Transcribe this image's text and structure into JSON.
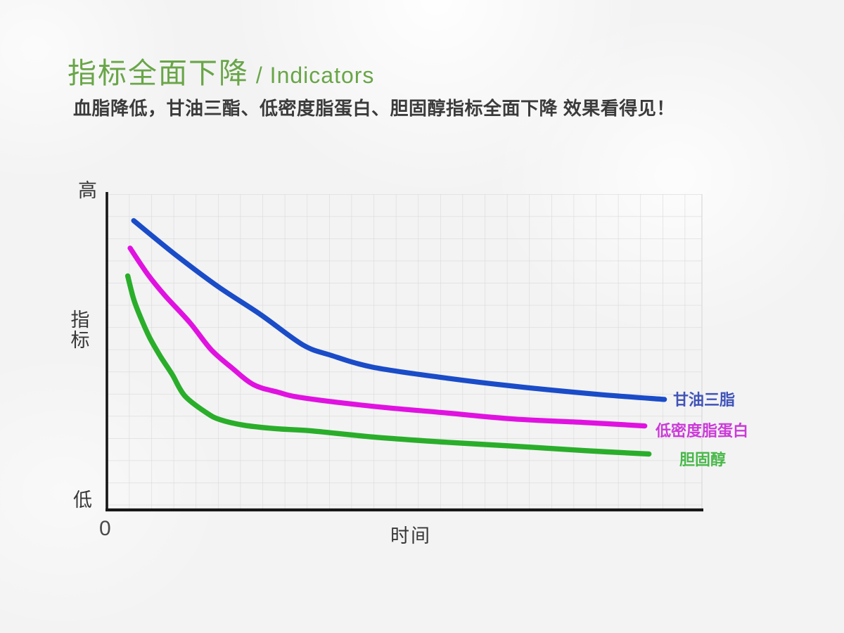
{
  "header": {
    "title_cn": "指标全面下降",
    "title_en": " / Indicators",
    "subtitle": "血脂降低，甘油三酯、低密度脂蛋白、胆固醇指标全面下降 效果看得见！"
  },
  "colors": {
    "title_green": "#69a647",
    "subtitle_text": "#3b3b3b",
    "axis": "#161616",
    "grid_line": "#d9d9d9",
    "background": "#f3f3f4"
  },
  "chart_data": {
    "type": "line",
    "title": "",
    "xlabel": "时间",
    "ylabel": "指标",
    "y_top_label": "高",
    "y_bottom_label": "低",
    "origin_label": "0",
    "grid": true,
    "legend_position": "right of each line end",
    "axes_note": "Qualitative axes: y runs from 低 (0) at bottom to 高 (1) at top; x is 时间 (time) starting at 0. Point coords are [time-fraction 0-1, indicator-level 0-1].",
    "series": [
      {
        "name": "甘油三脂",
        "color": "#1a4cc8",
        "label_color": "#4053b8",
        "points": [
          [
            0.045,
            0.916
          ],
          [
            0.116,
            0.807
          ],
          [
            0.187,
            0.707
          ],
          [
            0.258,
            0.619
          ],
          [
            0.329,
            0.523
          ],
          [
            0.376,
            0.49
          ],
          [
            0.447,
            0.452
          ],
          [
            0.565,
            0.419
          ],
          [
            0.683,
            0.392
          ],
          [
            0.825,
            0.366
          ],
          [
            0.937,
            0.35
          ]
        ]
      },
      {
        "name": "低密度脂蛋白",
        "color": "#e012e0",
        "label_color": "#cb3ad8",
        "points": [
          [
            0.039,
            0.829
          ],
          [
            0.069,
            0.745
          ],
          [
            0.098,
            0.678
          ],
          [
            0.139,
            0.594
          ],
          [
            0.175,
            0.508
          ],
          [
            0.21,
            0.45
          ],
          [
            0.246,
            0.397
          ],
          [
            0.287,
            0.373
          ],
          [
            0.329,
            0.355
          ],
          [
            0.447,
            0.328
          ],
          [
            0.565,
            0.308
          ],
          [
            0.683,
            0.288
          ],
          [
            0.801,
            0.277
          ],
          [
            0.904,
            0.266
          ]
        ]
      },
      {
        "name": "胆固醇",
        "color": "#2aae2a",
        "label_color": "#49b849",
        "points": [
          [
            0.035,
            0.741
          ],
          [
            0.045,
            0.667
          ],
          [
            0.057,
            0.608
          ],
          [
            0.072,
            0.545
          ],
          [
            0.09,
            0.486
          ],
          [
            0.11,
            0.428
          ],
          [
            0.131,
            0.361
          ],
          [
            0.167,
            0.308
          ],
          [
            0.19,
            0.286
          ],
          [
            0.231,
            0.268
          ],
          [
            0.285,
            0.257
          ],
          [
            0.34,
            0.251
          ],
          [
            0.447,
            0.231
          ],
          [
            0.565,
            0.215
          ],
          [
            0.683,
            0.202
          ],
          [
            0.801,
            0.188
          ],
          [
            0.911,
            0.177
          ]
        ]
      }
    ]
  }
}
